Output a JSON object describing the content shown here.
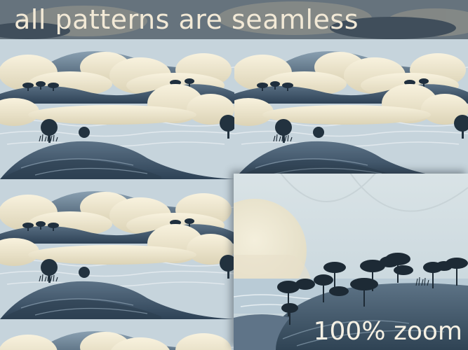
{
  "headline": {
    "text": "all patterns are seamless"
  },
  "zoom_inset": {
    "label": "100% zoom"
  },
  "colors": {
    "title": "#f2e9d6",
    "zoom_label": "#f6f1e4",
    "cream": "#f3ecd6",
    "slate": "#3f5468",
    "water": "#c9d8e0"
  },
  "icons": [
    "tree-icon",
    "cloud-icon",
    "hill-icon"
  ]
}
